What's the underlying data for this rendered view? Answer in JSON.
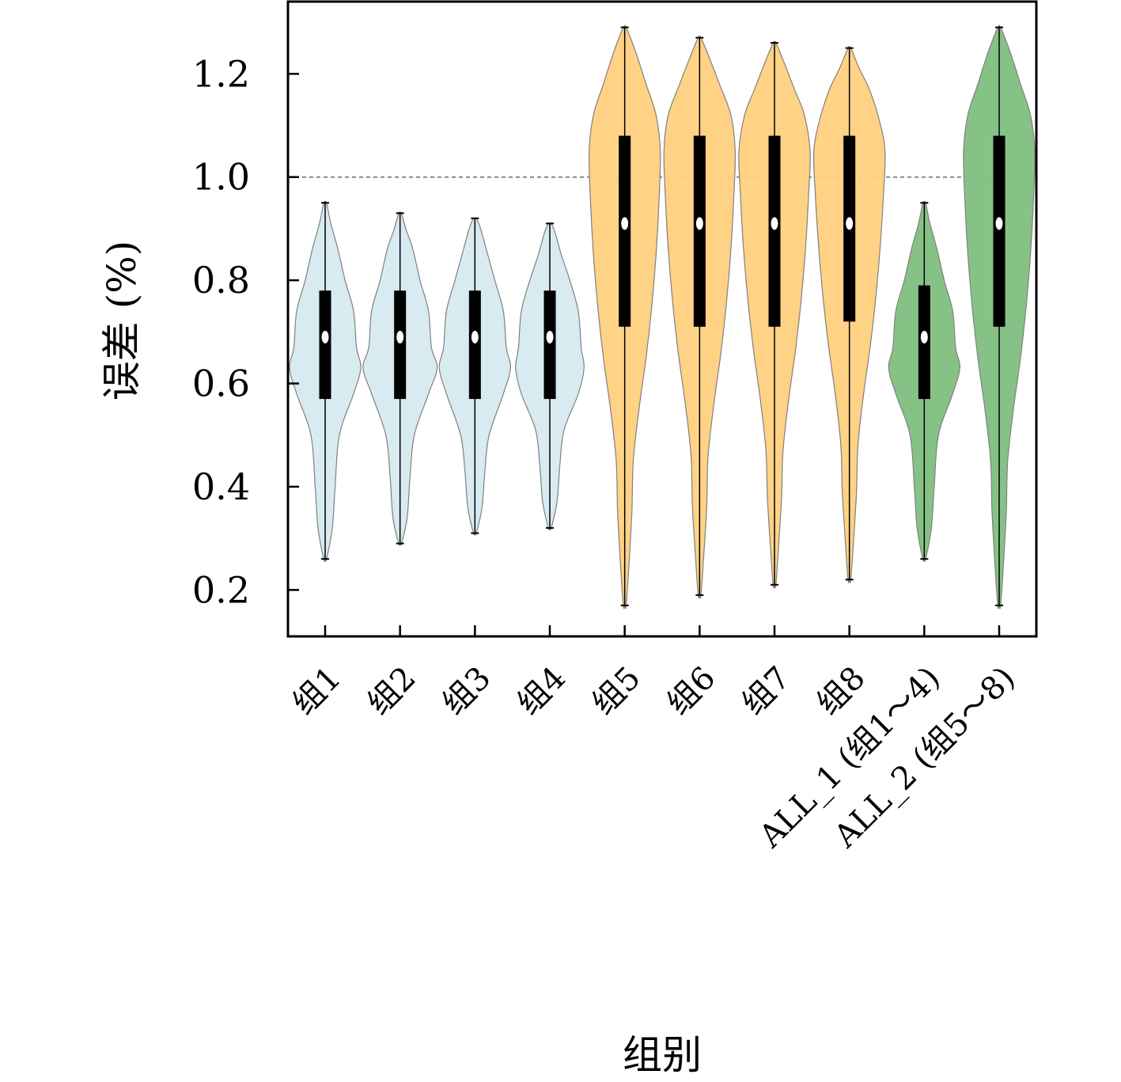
{
  "chart_data": {
    "type": "violin",
    "ylabel": "误差 (%)",
    "xlabel": "组别",
    "ylim": [
      0.11,
      1.34
    ],
    "yticks": [
      0.2,
      0.4,
      0.6,
      0.8,
      1.0,
      1.2
    ],
    "ytick_labels": [
      "0.2",
      "0.4",
      "0.6",
      "0.8",
      "1.0",
      "1.2"
    ],
    "reference_line": {
      "y": 1.0,
      "style": "dashed",
      "color": "#888888"
    },
    "colors": {
      "light_blue": "#d6eaf0",
      "orange": "#ffd080",
      "green": "#7fbf7f",
      "outline": "#808080",
      "box": "#000000",
      "median": "#ffffff"
    },
    "categories": [
      "组1",
      "组2",
      "组3",
      "组4",
      "组5",
      "组6",
      "组7",
      "组8",
      "ALL_1 (组1～4)",
      "ALL_2 (组5～8)"
    ],
    "groups": [
      {
        "label": "组1",
        "color": "light_blue",
        "min": 0.26,
        "q1": 0.57,
        "median": 0.69,
        "q3": 0.78,
        "max": 0.95,
        "density": [
          [
            0.26,
            0.01
          ],
          [
            0.32,
            0.05
          ],
          [
            0.4,
            0.07
          ],
          [
            0.5,
            0.1
          ],
          [
            0.58,
            0.2
          ],
          [
            0.63,
            0.25
          ],
          [
            0.67,
            0.22
          ],
          [
            0.74,
            0.2
          ],
          [
            0.8,
            0.14
          ],
          [
            0.86,
            0.09
          ],
          [
            0.91,
            0.04
          ],
          [
            0.95,
            0.01
          ]
        ]
      },
      {
        "label": "组2",
        "color": "light_blue",
        "min": 0.29,
        "q1": 0.57,
        "median": 0.69,
        "q3": 0.78,
        "max": 0.93,
        "density": [
          [
            0.29,
            0.01
          ],
          [
            0.34,
            0.05
          ],
          [
            0.42,
            0.07
          ],
          [
            0.5,
            0.1
          ],
          [
            0.58,
            0.2
          ],
          [
            0.63,
            0.26
          ],
          [
            0.67,
            0.22
          ],
          [
            0.74,
            0.2
          ],
          [
            0.8,
            0.14
          ],
          [
            0.86,
            0.09
          ],
          [
            0.9,
            0.04
          ],
          [
            0.93,
            0.01
          ]
        ]
      },
      {
        "label": "组3",
        "color": "light_blue",
        "min": 0.31,
        "q1": 0.57,
        "median": 0.69,
        "q3": 0.78,
        "max": 0.92,
        "density": [
          [
            0.31,
            0.01
          ],
          [
            0.36,
            0.05
          ],
          [
            0.43,
            0.07
          ],
          [
            0.5,
            0.1
          ],
          [
            0.58,
            0.2
          ],
          [
            0.63,
            0.25
          ],
          [
            0.67,
            0.22
          ],
          [
            0.74,
            0.2
          ],
          [
            0.8,
            0.14
          ],
          [
            0.86,
            0.08
          ],
          [
            0.9,
            0.04
          ],
          [
            0.92,
            0.01
          ]
        ]
      },
      {
        "label": "组4",
        "color": "light_blue",
        "min": 0.32,
        "q1": 0.57,
        "median": 0.69,
        "q3": 0.78,
        "max": 0.91,
        "density": [
          [
            0.32,
            0.01
          ],
          [
            0.37,
            0.05
          ],
          [
            0.44,
            0.07
          ],
          [
            0.51,
            0.1
          ],
          [
            0.58,
            0.2
          ],
          [
            0.63,
            0.24
          ],
          [
            0.67,
            0.22
          ],
          [
            0.74,
            0.2
          ],
          [
            0.8,
            0.14
          ],
          [
            0.85,
            0.08
          ],
          [
            0.89,
            0.04
          ],
          [
            0.91,
            0.01
          ]
        ]
      },
      {
        "label": "组5",
        "color": "orange",
        "min": 0.17,
        "q1": 0.71,
        "median": 0.91,
        "q3": 1.08,
        "max": 1.29,
        "density": [
          [
            0.17,
            0.01
          ],
          [
            0.25,
            0.03
          ],
          [
            0.35,
            0.05
          ],
          [
            0.45,
            0.06
          ],
          [
            0.55,
            0.1
          ],
          [
            0.65,
            0.15
          ],
          [
            0.75,
            0.19
          ],
          [
            0.85,
            0.22
          ],
          [
            0.95,
            0.24
          ],
          [
            1.05,
            0.25
          ],
          [
            1.12,
            0.22
          ],
          [
            1.18,
            0.15
          ],
          [
            1.24,
            0.08
          ],
          [
            1.29,
            0.01
          ]
        ]
      },
      {
        "label": "组6",
        "color": "orange",
        "min": 0.19,
        "q1": 0.71,
        "median": 0.91,
        "q3": 1.08,
        "max": 1.27,
        "density": [
          [
            0.19,
            0.01
          ],
          [
            0.27,
            0.03
          ],
          [
            0.36,
            0.05
          ],
          [
            0.46,
            0.06
          ],
          [
            0.56,
            0.1
          ],
          [
            0.66,
            0.15
          ],
          [
            0.76,
            0.19
          ],
          [
            0.86,
            0.22
          ],
          [
            0.96,
            0.24
          ],
          [
            1.05,
            0.25
          ],
          [
            1.12,
            0.22
          ],
          [
            1.18,
            0.14
          ],
          [
            1.23,
            0.07
          ],
          [
            1.27,
            0.01
          ]
        ]
      },
      {
        "label": "组7",
        "color": "orange",
        "min": 0.21,
        "q1": 0.71,
        "median": 0.91,
        "q3": 1.08,
        "max": 1.26,
        "density": [
          [
            0.21,
            0.01
          ],
          [
            0.29,
            0.03
          ],
          [
            0.38,
            0.05
          ],
          [
            0.47,
            0.06
          ],
          [
            0.57,
            0.1
          ],
          [
            0.67,
            0.15
          ],
          [
            0.77,
            0.19
          ],
          [
            0.87,
            0.22
          ],
          [
            0.97,
            0.24
          ],
          [
            1.05,
            0.25
          ],
          [
            1.12,
            0.21
          ],
          [
            1.17,
            0.14
          ],
          [
            1.22,
            0.07
          ],
          [
            1.26,
            0.01
          ]
        ]
      },
      {
        "label": "组8",
        "color": "orange",
        "min": 0.22,
        "q1": 0.72,
        "median": 0.91,
        "q3": 1.08,
        "max": 1.25,
        "density": [
          [
            0.22,
            0.01
          ],
          [
            0.3,
            0.03
          ],
          [
            0.39,
            0.05
          ],
          [
            0.48,
            0.06
          ],
          [
            0.58,
            0.1
          ],
          [
            0.68,
            0.15
          ],
          [
            0.78,
            0.19
          ],
          [
            0.88,
            0.22
          ],
          [
            0.97,
            0.24
          ],
          [
            1.05,
            0.25
          ],
          [
            1.11,
            0.21
          ],
          [
            1.17,
            0.14
          ],
          [
            1.21,
            0.07
          ],
          [
            1.25,
            0.01
          ]
        ]
      },
      {
        "label": "ALL_1 (组1～4)",
        "color": "green",
        "min": 0.26,
        "q1": 0.57,
        "median": 0.69,
        "q3": 0.79,
        "max": 0.95,
        "density": [
          [
            0.26,
            0.01
          ],
          [
            0.32,
            0.05
          ],
          [
            0.4,
            0.07
          ],
          [
            0.5,
            0.1
          ],
          [
            0.58,
            0.2
          ],
          [
            0.63,
            0.25
          ],
          [
            0.67,
            0.22
          ],
          [
            0.74,
            0.2
          ],
          [
            0.8,
            0.14
          ],
          [
            0.86,
            0.09
          ],
          [
            0.91,
            0.04
          ],
          [
            0.95,
            0.01
          ]
        ]
      },
      {
        "label": "ALL_2 (组5～8)",
        "color": "green",
        "min": 0.17,
        "q1": 0.71,
        "median": 0.91,
        "q3": 1.08,
        "max": 1.29,
        "density": [
          [
            0.17,
            0.01
          ],
          [
            0.25,
            0.03
          ],
          [
            0.35,
            0.05
          ],
          [
            0.45,
            0.06
          ],
          [
            0.55,
            0.1
          ],
          [
            0.65,
            0.15
          ],
          [
            0.75,
            0.19
          ],
          [
            0.85,
            0.22
          ],
          [
            0.95,
            0.24
          ],
          [
            1.05,
            0.25
          ],
          [
            1.12,
            0.22
          ],
          [
            1.18,
            0.15
          ],
          [
            1.24,
            0.08
          ],
          [
            1.29,
            0.01
          ]
        ]
      }
    ]
  }
}
